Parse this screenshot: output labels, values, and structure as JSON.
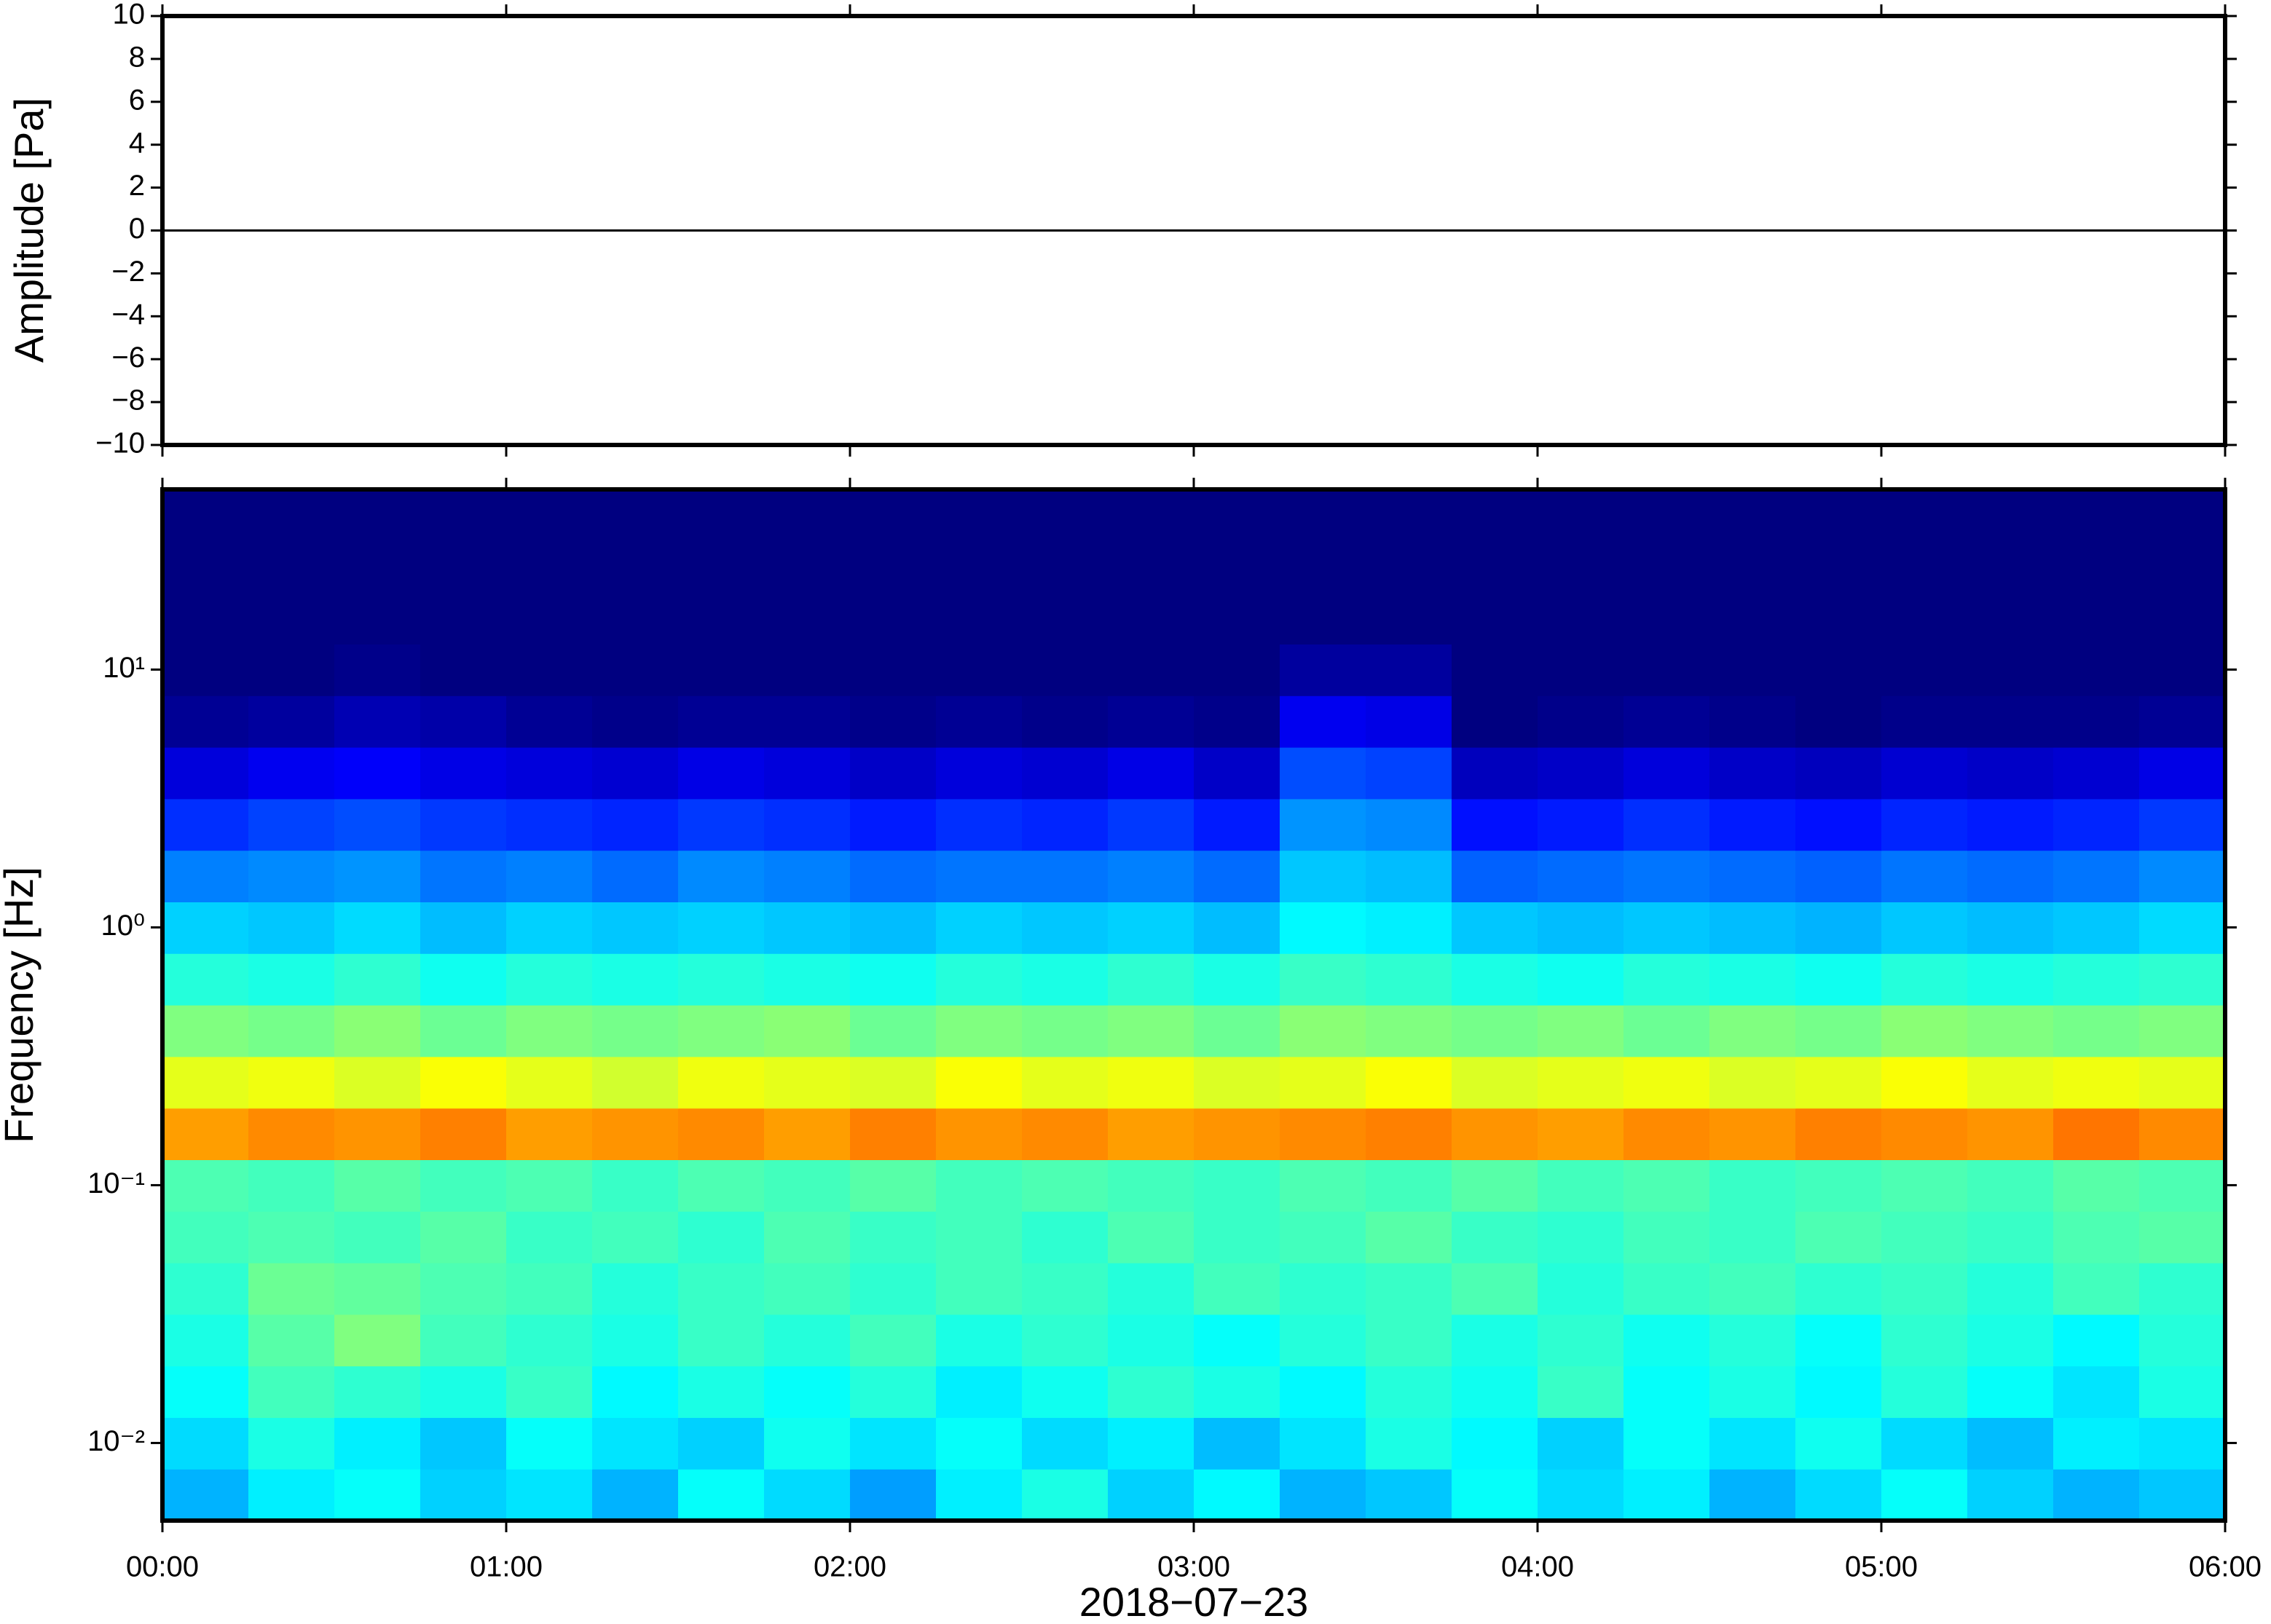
{
  "chart_data": [
    {
      "type": "line",
      "ylabel": "Amplitude [Pa]",
      "color": "#000000",
      "x": [
        0,
        0.25,
        0.5,
        0.75,
        1,
        1.25,
        1.5,
        1.75,
        2,
        2.25,
        2.5,
        2.75,
        3,
        3.25,
        3.5,
        3.75,
        4,
        4.25,
        4.5,
        4.75,
        5,
        5.25,
        5.5,
        5.75,
        6
      ],
      "values": [
        0,
        0,
        0,
        0,
        0,
        0,
        0,
        0,
        0,
        0,
        0,
        0,
        0,
        0,
        0,
        0,
        0,
        0,
        0,
        0,
        0,
        0,
        0,
        0,
        0
      ],
      "xlim": [
        0,
        6
      ],
      "xticks": [
        0,
        1,
        2,
        3,
        4,
        5,
        6
      ],
      "ylim": [
        -10,
        10
      ],
      "yticks": [
        {
          "value": -10,
          "label": "−10"
        },
        {
          "value": -8,
          "label": "−8"
        },
        {
          "value": -6,
          "label": "−6"
        },
        {
          "value": -4,
          "label": "−4"
        },
        {
          "value": -2,
          "label": "−2"
        },
        0,
        2,
        4,
        6,
        8,
        10
      ]
    },
    {
      "type": "heatmap",
      "ylabel": "Frequency [Hz]",
      "xlabel": "2018−07−23",
      "colormap": "jet",
      "ylog": true,
      "xlim": [
        0,
        6
      ],
      "xticks": [
        {
          "value": 0,
          "label": "00:00"
        },
        {
          "value": 1,
          "label": "01:00"
        },
        {
          "value": 2,
          "label": "02:00"
        },
        {
          "value": 3,
          "label": "03:00"
        },
        {
          "value": 4,
          "label": "04:00"
        },
        {
          "value": 5,
          "label": "05:00"
        },
        {
          "value": 6,
          "label": "06:00"
        }
      ],
      "ylim": [
        0.005,
        50
      ],
      "yticks": [
        {
          "value": 0.01,
          "label": "10⁻²"
        },
        {
          "value": 0.1,
          "label": "10⁻¹"
        },
        {
          "value": 1,
          "label": "10⁰"
        },
        {
          "value": 10,
          "label": "10¹"
        }
      ],
      "z": [
        [
          0.3,
          0.36,
          0.38,
          0.33,
          0.35,
          0.3,
          0.38,
          0.34,
          0.28,
          0.36,
          0.4,
          0.33,
          0.37,
          0.3,
          0.32,
          0.38,
          0.34,
          0.36,
          0.3,
          0.34,
          0.38,
          0.33,
          0.3,
          0.32
        ],
        [
          0.34,
          0.4,
          0.36,
          0.32,
          0.38,
          0.35,
          0.33,
          0.39,
          0.35,
          0.38,
          0.34,
          0.36,
          0.31,
          0.35,
          0.4,
          0.37,
          0.33,
          0.38,
          0.35,
          0.39,
          0.34,
          0.31,
          0.36,
          0.35
        ],
        [
          0.38,
          0.44,
          0.42,
          0.4,
          0.43,
          0.37,
          0.4,
          0.38,
          0.41,
          0.36,
          0.39,
          0.42,
          0.4,
          0.37,
          0.41,
          0.39,
          0.43,
          0.38,
          0.4,
          0.37,
          0.41,
          0.38,
          0.35,
          0.4
        ],
        [
          0.4,
          0.46,
          0.5,
          0.44,
          0.42,
          0.4,
          0.43,
          0.41,
          0.44,
          0.4,
          0.42,
          0.4,
          0.38,
          0.41,
          0.43,
          0.4,
          0.42,
          0.39,
          0.41,
          0.38,
          0.42,
          0.4,
          0.37,
          0.41
        ],
        [
          0.42,
          0.48,
          0.47,
          0.45,
          0.44,
          0.41,
          0.43,
          0.44,
          0.42,
          0.44,
          0.43,
          0.41,
          0.44,
          0.42,
          0.43,
          0.45,
          0.41,
          0.43,
          0.44,
          0.42,
          0.43,
          0.41,
          0.44,
          0.42
        ],
        [
          0.44,
          0.45,
          0.44,
          0.46,
          0.43,
          0.44,
          0.42,
          0.45,
          0.43,
          0.44,
          0.42,
          0.45,
          0.43,
          0.44,
          0.46,
          0.43,
          0.42,
          0.44,
          0.43,
          0.45,
          0.44,
          0.43,
          0.45,
          0.46
        ],
        [
          0.45,
          0.44,
          0.46,
          0.44,
          0.45,
          0.43,
          0.45,
          0.44,
          0.46,
          0.44,
          0.45,
          0.44,
          0.43,
          0.45,
          0.44,
          0.46,
          0.44,
          0.45,
          0.43,
          0.44,
          0.45,
          0.44,
          0.46,
          0.45
        ],
        [
          0.72,
          0.74,
          0.73,
          0.75,
          0.72,
          0.73,
          0.74,
          0.72,
          0.75,
          0.73,
          0.74,
          0.72,
          0.73,
          0.74,
          0.75,
          0.73,
          0.72,
          0.74,
          0.73,
          0.75,
          0.74,
          0.73,
          0.76,
          0.74
        ],
        [
          0.6,
          0.61,
          0.59,
          0.62,
          0.6,
          0.58,
          0.61,
          0.6,
          0.59,
          0.62,
          0.6,
          0.61,
          0.59,
          0.6,
          0.62,
          0.59,
          0.6,
          0.61,
          0.59,
          0.6,
          0.62,
          0.6,
          0.61,
          0.6
        ],
        [
          0.5,
          0.49,
          0.51,
          0.48,
          0.5,
          0.49,
          0.5,
          0.51,
          0.48,
          0.5,
          0.49,
          0.5,
          0.48,
          0.51,
          0.5,
          0.49,
          0.5,
          0.48,
          0.5,
          0.49,
          0.51,
          0.5,
          0.49,
          0.5
        ],
        [
          0.41,
          0.4,
          0.42,
          0.39,
          0.41,
          0.4,
          0.41,
          0.4,
          0.39,
          0.41,
          0.4,
          0.42,
          0.4,
          0.43,
          0.42,
          0.4,
          0.39,
          0.41,
          0.4,
          0.39,
          0.41,
          0.4,
          0.41,
          0.42
        ],
        [
          0.33,
          0.32,
          0.34,
          0.31,
          0.33,
          0.32,
          0.33,
          0.32,
          0.31,
          0.33,
          0.32,
          0.33,
          0.31,
          0.37,
          0.36,
          0.32,
          0.31,
          0.32,
          0.31,
          0.3,
          0.32,
          0.31,
          0.32,
          0.34
        ],
        [
          0.25,
          0.26,
          0.27,
          0.24,
          0.25,
          0.23,
          0.26,
          0.25,
          0.23,
          0.24,
          0.24,
          0.25,
          0.23,
          0.32,
          0.31,
          0.22,
          0.23,
          0.24,
          0.23,
          0.22,
          0.24,
          0.23,
          0.24,
          0.26
        ],
        [
          0.17,
          0.19,
          0.2,
          0.18,
          0.17,
          0.16,
          0.18,
          0.17,
          0.15,
          0.17,
          0.16,
          0.18,
          0.15,
          0.27,
          0.26,
          0.14,
          0.15,
          0.17,
          0.15,
          0.14,
          0.16,
          0.15,
          0.16,
          0.18
        ],
        [
          0.09,
          0.11,
          0.12,
          0.1,
          0.09,
          0.08,
          0.1,
          0.09,
          0.07,
          0.09,
          0.08,
          0.1,
          0.07,
          0.2,
          0.19,
          0.06,
          0.07,
          0.09,
          0.07,
          0.06,
          0.08,
          0.07,
          0.08,
          0.1
        ],
        [
          0.02,
          0.03,
          0.05,
          0.04,
          0.02,
          0.01,
          0.02,
          0.02,
          0.01,
          0.02,
          0.01,
          0.02,
          0.01,
          0.11,
          0.1,
          0.0,
          0.01,
          0.02,
          0.01,
          0.0,
          0.01,
          0.01,
          0.01,
          0.02
        ],
        [
          0,
          0,
          0.01,
          0,
          0,
          0,
          0,
          0,
          0,
          0,
          0,
          0,
          0,
          0.03,
          0.03,
          0,
          0,
          0,
          0,
          0,
          0,
          0,
          0,
          0
        ],
        [
          0,
          0,
          0,
          0,
          0,
          0,
          0,
          0,
          0,
          0,
          0,
          0,
          0,
          0,
          0,
          0,
          0,
          0,
          0,
          0,
          0,
          0,
          0,
          0
        ],
        [
          0,
          0,
          0,
          0,
          0,
          0,
          0,
          0,
          0,
          0,
          0,
          0,
          0,
          0,
          0,
          0,
          0,
          0,
          0,
          0,
          0,
          0,
          0,
          0
        ],
        [
          0,
          0,
          0,
          0,
          0,
          0,
          0,
          0,
          0,
          0,
          0,
          0,
          0,
          0,
          0,
          0,
          0,
          0,
          0,
          0,
          0,
          0,
          0,
          0
        ]
      ]
    }
  ]
}
